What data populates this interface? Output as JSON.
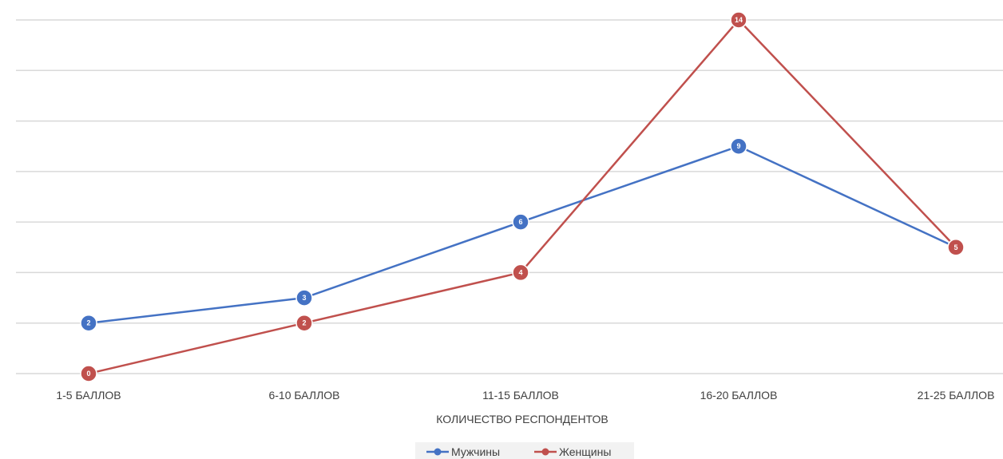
{
  "chart_data": {
    "type": "line",
    "categories": [
      "1-5 БАЛЛОВ",
      "6-10 БАЛЛОВ",
      "11-15 БАЛЛОВ",
      "16-20 БАЛЛОВ",
      "21-25 БАЛЛОВ"
    ],
    "series": [
      {
        "name": "Мужчины",
        "values": [
          2,
          3,
          6,
          9,
          5
        ],
        "color": "#4472C4"
      },
      {
        "name": "Женщины",
        "values": [
          0,
          2,
          4,
          14,
          5
        ],
        "color": "#C0504D"
      }
    ],
    "xlabel": "КОЛИЧЕСТВО РЕСПОНДЕНТОВ",
    "ylabel": "",
    "ylim": [
      0,
      14
    ],
    "grid": true,
    "legend": "bottom",
    "gridline_color": "#d9d9d9"
  }
}
